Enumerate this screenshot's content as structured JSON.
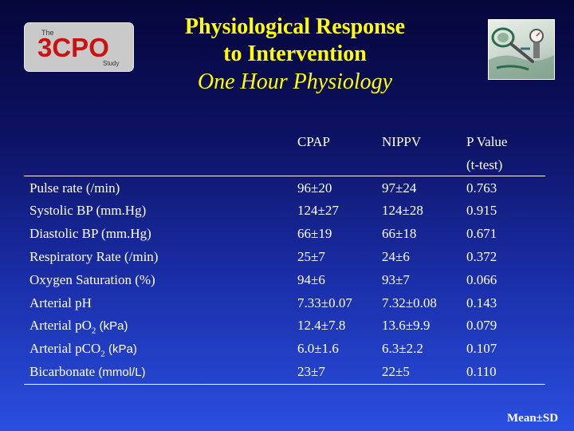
{
  "logo": {
    "small_top": "The",
    "main": "3CPO",
    "small_bottom": "Study"
  },
  "title": {
    "line1": "Physiological Response",
    "line2": "to Intervention",
    "line3": "One Hour Physiology"
  },
  "columns": {
    "cpap": "CPAP",
    "nippv": "NIPPV",
    "pvalue": "P Value",
    "pvalue_note": "(t-test)"
  },
  "rows": [
    {
      "label": "Pulse rate (/min)",
      "cpap": "96±20",
      "nippv": "97±24",
      "p": "0.763"
    },
    {
      "label": "Systolic BP (mm.Hg)",
      "cpap": "124±27",
      "nippv": "124±28",
      "p": "0.915"
    },
    {
      "label": "Diastolic BP (mm.Hg)",
      "cpap": "66±19",
      "nippv": "66±18",
      "p": "0.671"
    },
    {
      "label": "Respiratory Rate (/min)",
      "cpap": "25±7",
      "nippv": "24±6",
      "p": "0.372"
    },
    {
      "label": "Oxygen Saturation (%)",
      "cpap": "94±6",
      "nippv": "93±7",
      "p": "0.066"
    },
    {
      "label": "Arterial pH",
      "cpap": "7.33±0.07",
      "nippv": "7.32±0.08",
      "p": "0.143"
    },
    {
      "label_prefix": "Arterial pO",
      "label_sub": "2",
      "label_unit": "(kPa)",
      "cpap": "12.4±7.8",
      "nippv": "13.6±9.9",
      "p": "0.079"
    },
    {
      "label_prefix": "Arterial pCO",
      "label_sub": "2",
      "label_unit": "(kPa)",
      "cpap": "6.0±1.6",
      "nippv": "6.3±2.2",
      "p": "0.107"
    },
    {
      "label_prefix": "Bicarbonate",
      "label_unit": "(mmol/L)",
      "cpap": "23±7",
      "nippv": "22±5",
      "p": "0.110"
    }
  ],
  "footer": "Mean±SD",
  "colors": {
    "title": "#ffff00",
    "logo_red": "#cc1111",
    "text": "#ffffff"
  },
  "icons": {
    "photo": "cpap-mask-equipment-photo"
  }
}
